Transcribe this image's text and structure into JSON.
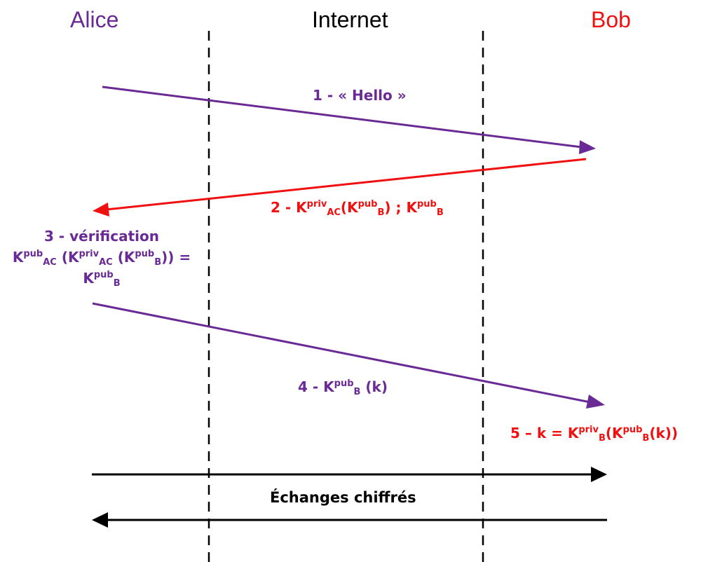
{
  "actors": {
    "alice": {
      "label": "Alice",
      "color": "#6a2a96"
    },
    "internet": {
      "label": "Internet",
      "color": "#000000"
    },
    "bob": {
      "label": "Bob",
      "color": "#f01010"
    }
  },
  "colors": {
    "purple": "#6a2a96",
    "red": "#f01010",
    "black": "#000000"
  },
  "steps": {
    "s1": {
      "text": "1 - « Hello »"
    },
    "s2": {
      "prefix": "2 - ",
      "K": "K",
      "priv": "priv",
      "pub": "pub",
      "AC": "AC",
      "B": "B",
      "open": "(",
      "close": ")",
      "sep": " ;  "
    },
    "s3": {
      "title": "3 - vérification",
      "K": "K",
      "pub": "pub",
      "priv": "priv",
      "AC": "AC",
      "B": "B",
      "open": "(",
      "close1": ")",
      "close2": "))",
      "eq": " = "
    },
    "s4": {
      "prefix": "4 - ",
      "K": "K",
      "pub": "pub",
      "B": "B",
      "arg": " (k)"
    },
    "s5": {
      "prefix": "5 – k = ",
      "K": "K",
      "priv": "priv",
      "pub": "pub",
      "B": "B",
      "open": "(",
      "inner": "(k))"
    }
  },
  "exchange": {
    "label": "Échanges chiffrés"
  }
}
